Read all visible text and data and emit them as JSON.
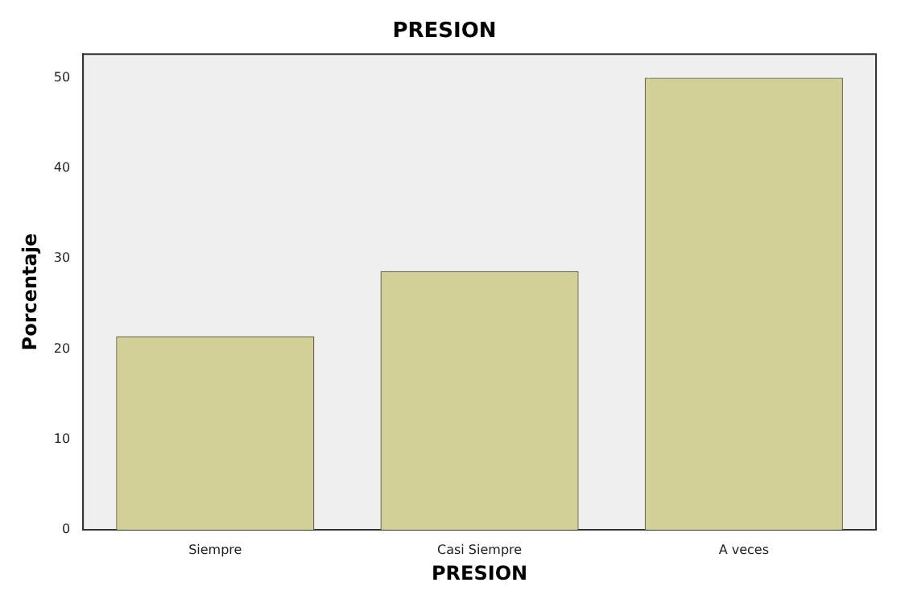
{
  "chart_data": {
    "type": "bar",
    "title": "PRESION",
    "xlabel": "PRESION",
    "ylabel": "Porcentaje",
    "categories": [
      "Siempre",
      "Casi Siempre",
      "A veces"
    ],
    "values": [
      21.4,
      28.6,
      50
    ],
    "color": "#d2d096",
    "ylim": [
      0,
      52.6
    ],
    "yticks": [
      0,
      10,
      20,
      30,
      40,
      50
    ],
    "grid": false,
    "legend": false
  }
}
